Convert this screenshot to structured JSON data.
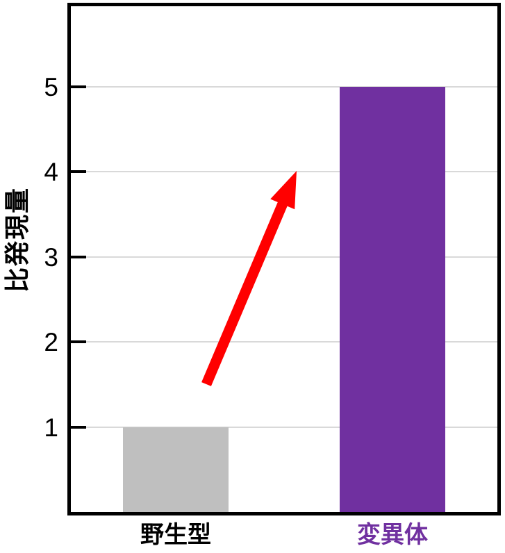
{
  "chart_data": {
    "type": "bar",
    "title": "",
    "ylabel": "比発現量",
    "categories": [
      "野生型",
      "変異体"
    ],
    "values": [
      1,
      5
    ],
    "bar_colors": [
      "#BFBFBF",
      "#7030A0"
    ],
    "category_label_colors": [
      "#000000",
      "#7030A0"
    ],
    "yticks": [
      "1",
      "2",
      "3",
      "4",
      "5"
    ],
    "ytick_values": [
      1,
      2,
      3,
      4,
      5
    ],
    "ylim": [
      0,
      6
    ],
    "grid": "horizontal",
    "gridline_color": "#D9D9D9",
    "axis_color": "#000000",
    "tick_color": "#000000",
    "background_color": "#FFFFFF",
    "legend": "none",
    "annotations": [
      {
        "type": "arrow",
        "color": "#FF0000",
        "from_xy": [
          297,
          553
        ],
        "to_xy": [
          427,
          246
        ]
      }
    ]
  }
}
